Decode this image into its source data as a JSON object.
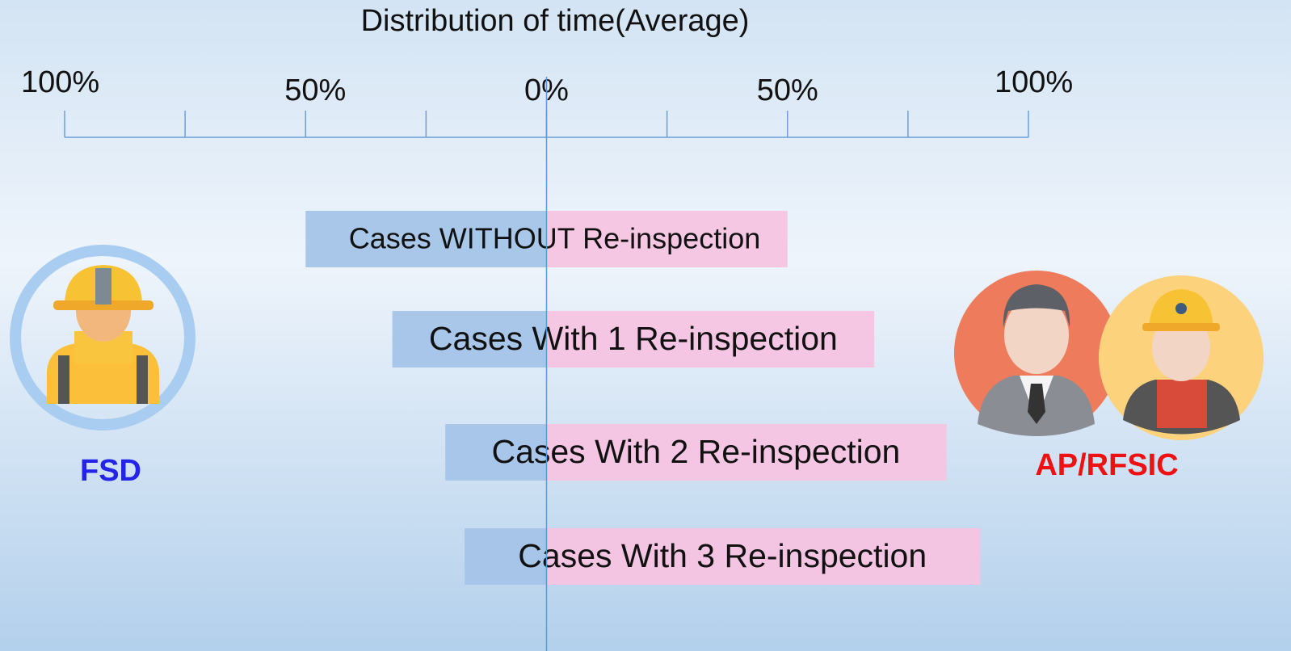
{
  "chart_data": {
    "type": "diverging-bar",
    "title": "Distribution of time(Average)",
    "categories": [
      "Cases WITHOUT Re-inspection",
      "Cases With 1 Re-inspection",
      "Cases With 2 Re-inspection",
      "Cases With 3 Re-inspection"
    ],
    "series": [
      {
        "name": "FSD",
        "color": "#a4c4e8",
        "label_color": "#2424e8",
        "values": [
          -50,
          -32,
          -21,
          -17
        ]
      },
      {
        "name": "AP/RFSIC",
        "color": "#f5c4e2",
        "label_color": "#ee1111",
        "values": [
          50,
          68,
          83,
          90
        ]
      }
    ],
    "xlim": [
      -100,
      100
    ],
    "xticks": [
      {
        "value": -100,
        "label": "100%"
      },
      {
        "value": -50,
        "label": "50%"
      },
      {
        "value": 0,
        "label": "0%"
      },
      {
        "value": 50,
        "label": "50%"
      },
      {
        "value": 100,
        "label": "100%"
      }
    ],
    "minor_xticks": [
      -75,
      -25,
      25,
      75
    ],
    "zero_line": true
  }
}
